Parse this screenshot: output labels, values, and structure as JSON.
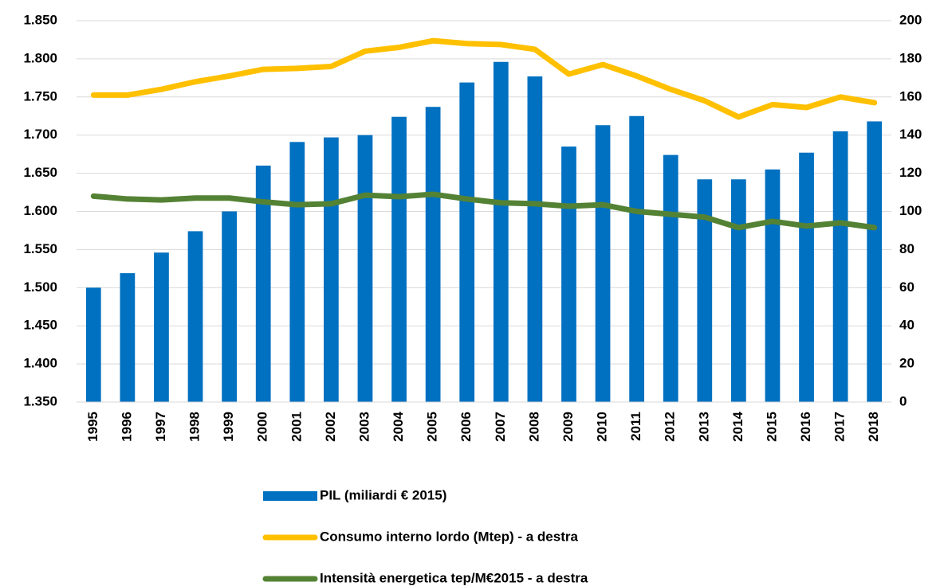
{
  "chart_data": {
    "type": "bar-line",
    "categories": [
      "1995",
      "1996",
      "1997",
      "1998",
      "1999",
      "2000",
      "2001",
      "2002",
      "2003",
      "2004",
      "2005",
      "2006",
      "2007",
      "2008",
      "2009",
      "2010",
      "2011",
      "2012",
      "2013",
      "2014",
      "2015",
      "2016",
      "2017",
      "2018"
    ],
    "series": [
      {
        "name": "PIL (miliardi € 2015)",
        "type": "bar",
        "color": "#0070c0",
        "values": [
          1500,
          1519,
          1546,
          1574,
          1600,
          1660,
          1691,
          1697,
          1700,
          1724,
          1737,
          1769,
          1796,
          1777,
          1685,
          1713,
          1725,
          1674,
          1642,
          1642,
          1655,
          1677,
          1705,
          1718
        ]
      },
      {
        "name": "Consumo interno lordo (Mtep) - a destra",
        "type": "line",
        "axis": "y2",
        "color": "#ffc000",
        "values": [
          161,
          161,
          164,
          168,
          171,
          174.5,
          175,
          176,
          184,
          186,
          189.5,
          188,
          187.5,
          185,
          172,
          177,
          171,
          164,
          158,
          149.5,
          156,
          154.5,
          160,
          157
        ]
      },
      {
        "name": "Intensità energetica tep/M€2015 - a destra",
        "type": "line",
        "axis": "y2",
        "color": "#548235",
        "values": [
          108,
          106.5,
          106,
          107,
          107,
          105,
          103.5,
          104,
          108.5,
          107.7,
          109,
          106.5,
          104.5,
          104,
          102.7,
          103.5,
          100,
          98.5,
          97,
          91.5,
          94.8,
          92.3,
          94,
          91.5
        ]
      }
    ],
    "ylim": [
      1350,
      1850
    ],
    "yticks": [
      {
        "value": 1350,
        "label": "1.350"
      },
      {
        "value": 1400,
        "label": "1.400"
      },
      {
        "value": 1450,
        "label": "1.450"
      },
      {
        "value": 1500,
        "label": "1.500"
      },
      {
        "value": 1550,
        "label": "1.550"
      },
      {
        "value": 1600,
        "label": "1.600"
      },
      {
        "value": 1650,
        "label": "1.650"
      },
      {
        "value": 1700,
        "label": "1.700"
      },
      {
        "value": 1750,
        "label": "1.750"
      },
      {
        "value": 1800,
        "label": "1.800"
      },
      {
        "value": 1850,
        "label": "1.850"
      }
    ],
    "y2lim": [
      0,
      200
    ],
    "y2ticks": [
      0,
      20,
      40,
      60,
      80,
      100,
      120,
      140,
      160,
      180,
      200
    ],
    "grid": true
  }
}
